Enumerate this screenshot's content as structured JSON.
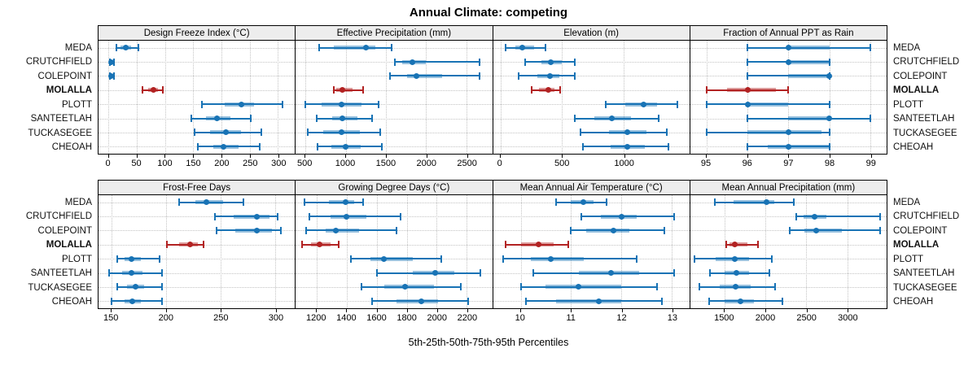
{
  "title": "Annual Climate: competing",
  "caption": "5th-25th-50th-75th-95th Percentiles",
  "sites": [
    "MEDA",
    "CRUTCHFIELD",
    "COLEPOINT",
    "MOLALLA",
    "PLOTT",
    "SANTEETLAH",
    "TUCKASEGEE",
    "CHEOAH"
  ],
  "highlight_site": "MOLALLA",
  "colors": {
    "series": "#1873b5",
    "highlight": "#b22222",
    "strip_bg": "#ededed",
    "panel_border": "#000000",
    "grid": "#c3c3c3"
  },
  "chart_data": {
    "type": "dotplot-percentiles",
    "percentiles": [
      5,
      25,
      50,
      75,
      95
    ],
    "grid": "dotted",
    "layout": "2 rows x 4 columns, site labels on left and right, x-axes below each panel row",
    "panels": [
      {
        "title": "Design Freeze Index (°C)",
        "grid_row": 0,
        "grid_col": 0,
        "ticks": [
          0,
          50,
          100,
          150,
          200,
          250,
          300
        ],
        "xlim": [
          -18,
          330
        ],
        "series": [
          {
            "site": "MEDA",
            "p": [
              14,
              21,
              30,
              40,
              52
            ]
          },
          {
            "site": "CRUTCHFIELD",
            "p": [
              2,
              4,
              5,
              7,
              9
            ]
          },
          {
            "site": "COLEPOINT",
            "p": [
              2,
              4,
              5,
              7,
              9
            ]
          },
          {
            "site": "MOLALLA",
            "p": [
              60,
              70,
              80,
              88,
              96
            ]
          },
          {
            "site": "PLOTT",
            "p": [
              165,
              205,
              235,
              258,
              308
            ]
          },
          {
            "site": "SANTEETLAH",
            "p": [
              146,
              172,
              192,
              215,
              252
            ]
          },
          {
            "site": "TUCKASEGEE",
            "p": [
              152,
              180,
              208,
              235,
              270
            ]
          },
          {
            "site": "CHEOAH",
            "p": [
              158,
              185,
              203,
              230,
              268
            ]
          }
        ]
      },
      {
        "title": "Effective Precipitation (mm)",
        "grid_row": 0,
        "grid_col": 1,
        "ticks": [
          500,
          1000,
          1500,
          2000,
          2500
        ],
        "xlim": [
          380,
          2820
        ],
        "series": [
          {
            "site": "MEDA",
            "p": [
              670,
              855,
              1250,
              1370,
              1570
            ]
          },
          {
            "site": "CRUTCHFIELD",
            "p": [
              1610,
              1700,
              1830,
              2000,
              2660
            ]
          },
          {
            "site": "COLEPOINT",
            "p": [
              1550,
              1760,
              1880,
              2200,
              2660
            ]
          },
          {
            "site": "MOLALLA",
            "p": [
              850,
              880,
              960,
              1090,
              1220
            ]
          },
          {
            "site": "PLOTT",
            "p": [
              500,
              700,
              950,
              1200,
              1410
            ]
          },
          {
            "site": "SANTEETLAH",
            "p": [
              640,
              830,
              960,
              1150,
              1330
            ]
          },
          {
            "site": "TUCKASEGEE",
            "p": [
              530,
              720,
              950,
              1180,
              1430
            ]
          },
          {
            "site": "CHEOAH",
            "p": [
              650,
              820,
              1000,
              1190,
              1450
            ]
          }
        ]
      },
      {
        "title": "Elevation (m)",
        "grid_row": 0,
        "grid_col": 2,
        "ticks": [
          0,
          500,
          1000
        ],
        "xlim": [
          -60,
          1530
        ],
        "series": [
          {
            "site": "MEDA",
            "p": [
              40,
              120,
              180,
              270,
              365
            ]
          },
          {
            "site": "CRUTCHFIELD",
            "p": [
              200,
              330,
              410,
              500,
              600
            ]
          },
          {
            "site": "COLEPOINT",
            "p": [
              150,
              300,
              400,
              480,
              600
            ]
          },
          {
            "site": "MOLALLA",
            "p": [
              250,
              310,
              390,
              440,
              485
            ]
          },
          {
            "site": "PLOTT",
            "p": [
              850,
              1010,
              1160,
              1270,
              1430
            ]
          },
          {
            "site": "SANTEETLAH",
            "p": [
              600,
              760,
              900,
              1060,
              1280
            ]
          },
          {
            "site": "TUCKASEGEE",
            "p": [
              650,
              880,
              1030,
              1180,
              1350
            ]
          },
          {
            "site": "CHEOAH",
            "p": [
              670,
              890,
              1030,
              1170,
              1360
            ]
          }
        ]
      },
      {
        "title": "Fraction of Annual PPT as Rain",
        "grid_row": 0,
        "grid_col": 3,
        "ticks": [
          95,
          96,
          97,
          98,
          99
        ],
        "xlim": [
          94.6,
          99.4
        ],
        "series": [
          {
            "site": "MEDA",
            "p": [
              96,
              97,
              97,
              98,
              99
            ]
          },
          {
            "site": "CRUTCHFIELD",
            "p": [
              96,
              97,
              97,
              98,
              98
            ]
          },
          {
            "site": "COLEPOINT",
            "p": [
              96,
              97,
              98,
              98,
              98
            ]
          },
          {
            "site": "MOLALLA",
            "p": [
              95,
              95.5,
              96,
              96.7,
              97
            ]
          },
          {
            "site": "PLOTT",
            "p": [
              95,
              96,
              96,
              97,
              98
            ]
          },
          {
            "site": "SANTEETLAH",
            "p": [
              96,
              97,
              98,
              98,
              99
            ]
          },
          {
            "site": "TUCKASEGEE",
            "p": [
              95,
              96,
              97,
              97.8,
              98
            ]
          },
          {
            "site": "CHEOAH",
            "p": [
              96,
              96.5,
              97,
              98,
              98
            ]
          }
        ]
      },
      {
        "title": "Frost-Free Days",
        "grid_row": 1,
        "grid_col": 0,
        "ticks": [
          150,
          200,
          250,
          300
        ],
        "xlim": [
          138,
          318
        ],
        "series": [
          {
            "site": "MEDA",
            "p": [
              212,
              227,
              237,
              252,
              271
            ]
          },
          {
            "site": "CRUTCHFIELD",
            "p": [
              245,
              262,
              283,
              295,
              302
            ]
          },
          {
            "site": "COLEPOINT",
            "p": [
              246,
              263,
              283,
              297,
              305
            ]
          },
          {
            "site": "MOLALLA",
            "p": [
              201,
              212,
              222,
              229,
              234
            ]
          },
          {
            "site": "PLOTT",
            "p": [
              155,
              162,
              168,
              177,
              194
            ]
          },
          {
            "site": "SANTEETLAH",
            "p": [
              148,
              160,
              168,
              178,
              196
            ]
          },
          {
            "site": "TUCKASEGEE",
            "p": [
              155,
              164,
              172,
              180,
              196
            ]
          },
          {
            "site": "CHEOAH",
            "p": [
              150,
              162,
              169,
              177,
              196
            ]
          }
        ]
      },
      {
        "title": "Growing Degree Days (°C)",
        "grid_row": 1,
        "grid_col": 1,
        "ticks": [
          1200,
          1400,
          1600,
          1800,
          2000,
          2200
        ],
        "xlim": [
          1060,
          2370
        ],
        "series": [
          {
            "site": "MEDA",
            "p": [
              1120,
              1280,
              1390,
              1450,
              1510
            ]
          },
          {
            "site": "CRUTCHFIELD",
            "p": [
              1150,
              1290,
              1400,
              1530,
              1760
            ]
          },
          {
            "site": "COLEPOINT",
            "p": [
              1130,
              1260,
              1330,
              1480,
              1730
            ]
          },
          {
            "site": "MOLALLA",
            "p": [
              1100,
              1160,
              1220,
              1290,
              1345
            ]
          },
          {
            "site": "PLOTT",
            "p": [
              1430,
              1560,
              1650,
              1840,
              2030
            ]
          },
          {
            "site": "SANTEETLAH",
            "p": [
              1600,
              1840,
              1990,
              2120,
              2290
            ]
          },
          {
            "site": "TUCKASEGEE",
            "p": [
              1500,
              1650,
              1790,
              1980,
              2160
            ]
          },
          {
            "site": "CHEOAH",
            "p": [
              1570,
              1730,
              1900,
              2010,
              2210
            ]
          }
        ]
      },
      {
        "title": "Mean Annual Air Temperature (°C)",
        "grid_row": 1,
        "grid_col": 2,
        "ticks": [
          10,
          11,
          12,
          13
        ],
        "xlim": [
          9.45,
          13.35
        ],
        "series": [
          {
            "site": "MEDA",
            "p": [
              10.7,
              11.0,
              11.25,
              11.45,
              11.7
            ]
          },
          {
            "site": "CRUTCHFIELD",
            "p": [
              11.2,
              11.6,
              12.0,
              12.3,
              13.05
            ]
          },
          {
            "site": "COLEPOINT",
            "p": [
              11.0,
              11.3,
              11.85,
              12.15,
              12.85
            ]
          },
          {
            "site": "MOLALLA",
            "p": [
              9.7,
              10.0,
              10.35,
              10.65,
              10.95
            ]
          },
          {
            "site": "PLOTT",
            "p": [
              9.65,
              10.2,
              10.6,
              11.25,
              12.3
            ]
          },
          {
            "site": "SANTEETLAH",
            "p": [
              10.25,
              11.15,
              11.8,
              12.35,
              13.05
            ]
          },
          {
            "site": "TUCKASEGEE",
            "p": [
              10.0,
              10.5,
              11.15,
              12.0,
              12.7
            ]
          },
          {
            "site": "CHEOAH",
            "p": [
              10.1,
              10.7,
              11.55,
              12.0,
              12.8
            ]
          }
        ]
      },
      {
        "title": "Mean Annual Precipitation (mm)",
        "grid_row": 1,
        "grid_col": 3,
        "ticks": [
          1500,
          2000,
          2500,
          3000
        ],
        "xlim": [
          1080,
          3480
        ],
        "series": [
          {
            "site": "MEDA",
            "p": [
              1380,
              1610,
              2010,
              2110,
              2350
            ]
          },
          {
            "site": "CRUTCHFIELD",
            "p": [
              2380,
              2470,
              2600,
              2740,
              3400
            ]
          },
          {
            "site": "COLEPOINT",
            "p": [
              2300,
              2480,
              2620,
              2930,
              3400
            ]
          },
          {
            "site": "MOLALLA",
            "p": [
              1520,
              1560,
              1620,
              1780,
              1910
            ]
          },
          {
            "site": "PLOTT",
            "p": [
              1130,
              1390,
              1620,
              1800,
              2080
            ]
          },
          {
            "site": "SANTEETLAH",
            "p": [
              1320,
              1500,
              1640,
              1800,
              2050
            ]
          },
          {
            "site": "TUCKASEGEE",
            "p": [
              1190,
              1440,
              1630,
              1820,
              2120
            ]
          },
          {
            "site": "CHEOAH",
            "p": [
              1310,
              1500,
              1690,
              1860,
              2210
            ]
          }
        ]
      }
    ]
  }
}
